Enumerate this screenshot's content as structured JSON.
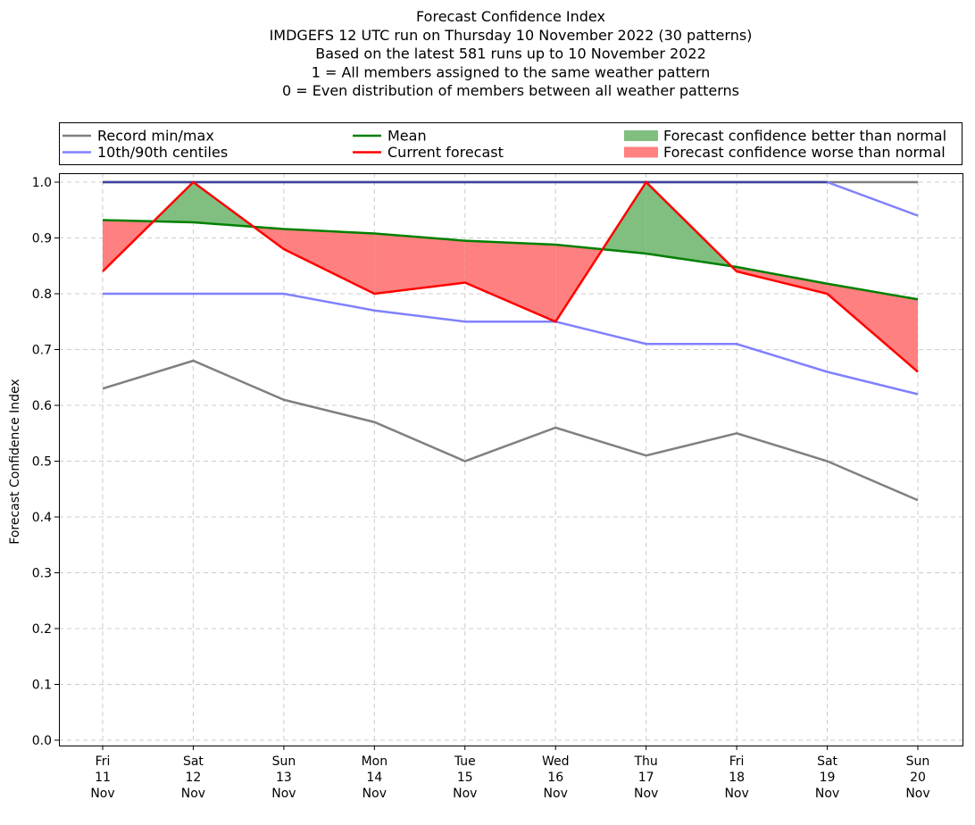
{
  "chart_data": {
    "type": "line",
    "title_lines": [
      "Forecast Confidence Index",
      "IMDGEFS 12 UTC run on Thursday 10 November 2022 (30 patterns)",
      "Based on the latest 581 runs up to 10 November 2022",
      "1 = All members assigned to the same weather pattern",
      "0 = Even distribution of members between all weather patterns"
    ],
    "ylabel": "Forecast Confidence Index",
    "xlabel": "",
    "ylim": [
      0.0,
      1.0
    ],
    "yticks": [
      "0.0",
      "0.1",
      "0.2",
      "0.3",
      "0.4",
      "0.5",
      "0.6",
      "0.7",
      "0.8",
      "0.9",
      "1.0"
    ],
    "grid": true,
    "legend_position": "top",
    "categories": [
      [
        "Fri",
        "11",
        "Nov"
      ],
      [
        "Sat",
        "12",
        "Nov"
      ],
      [
        "Sun",
        "13",
        "Nov"
      ],
      [
        "Mon",
        "14",
        "Nov"
      ],
      [
        "Tue",
        "15",
        "Nov"
      ],
      [
        "Wed",
        "16",
        "Nov"
      ],
      [
        "Thu",
        "17",
        "Nov"
      ],
      [
        "Fri",
        "18",
        "Nov"
      ],
      [
        "Sat",
        "19",
        "Nov"
      ],
      [
        "Sun",
        "20",
        "Nov"
      ]
    ],
    "series": {
      "record_min": [
        0.63,
        0.68,
        0.61,
        0.57,
        0.5,
        0.56,
        0.51,
        0.55,
        0.5,
        0.43
      ],
      "record_max": [
        1.0,
        1.0,
        1.0,
        1.0,
        1.0,
        1.0,
        1.0,
        1.0,
        1.0,
        1.0
      ],
      "centile_10": [
        0.8,
        0.8,
        0.8,
        0.77,
        0.75,
        0.75,
        0.71,
        0.71,
        0.66,
        0.62
      ],
      "centile_90": [
        1.0,
        1.0,
        1.0,
        1.0,
        1.0,
        1.0,
        1.0,
        1.0,
        1.0,
        0.94
      ],
      "mean": [
        0.932,
        0.928,
        0.916,
        0.908,
        0.895,
        0.888,
        0.872,
        0.848,
        0.818,
        0.79
      ],
      "current": [
        0.84,
        1.0,
        0.88,
        0.8,
        0.82,
        0.75,
        1.0,
        0.84,
        0.8,
        0.66
      ]
    },
    "legend": [
      {
        "label": "Record min/max",
        "kind": "line",
        "color": "#808080"
      },
      {
        "label": "Mean",
        "kind": "line",
        "color": "#008000"
      },
      {
        "label": "Forecast confidence better than normal",
        "kind": "patch",
        "color": "#80bf80"
      },
      {
        "label": "10th/90th centiles",
        "kind": "line",
        "color": "#8080ff"
      },
      {
        "label": "Current forecast",
        "kind": "line",
        "color": "#ff0000"
      },
      {
        "label": "Forecast confidence worse than normal",
        "kind": "patch",
        "color": "#ff8080"
      }
    ],
    "colors": {
      "record": "#808080",
      "centiles": "#8080ff",
      "mean": "#008000",
      "current": "#ff0000",
      "better": "#80bf80",
      "worse": "#ff8080",
      "overlap": "#4040a0"
    }
  }
}
